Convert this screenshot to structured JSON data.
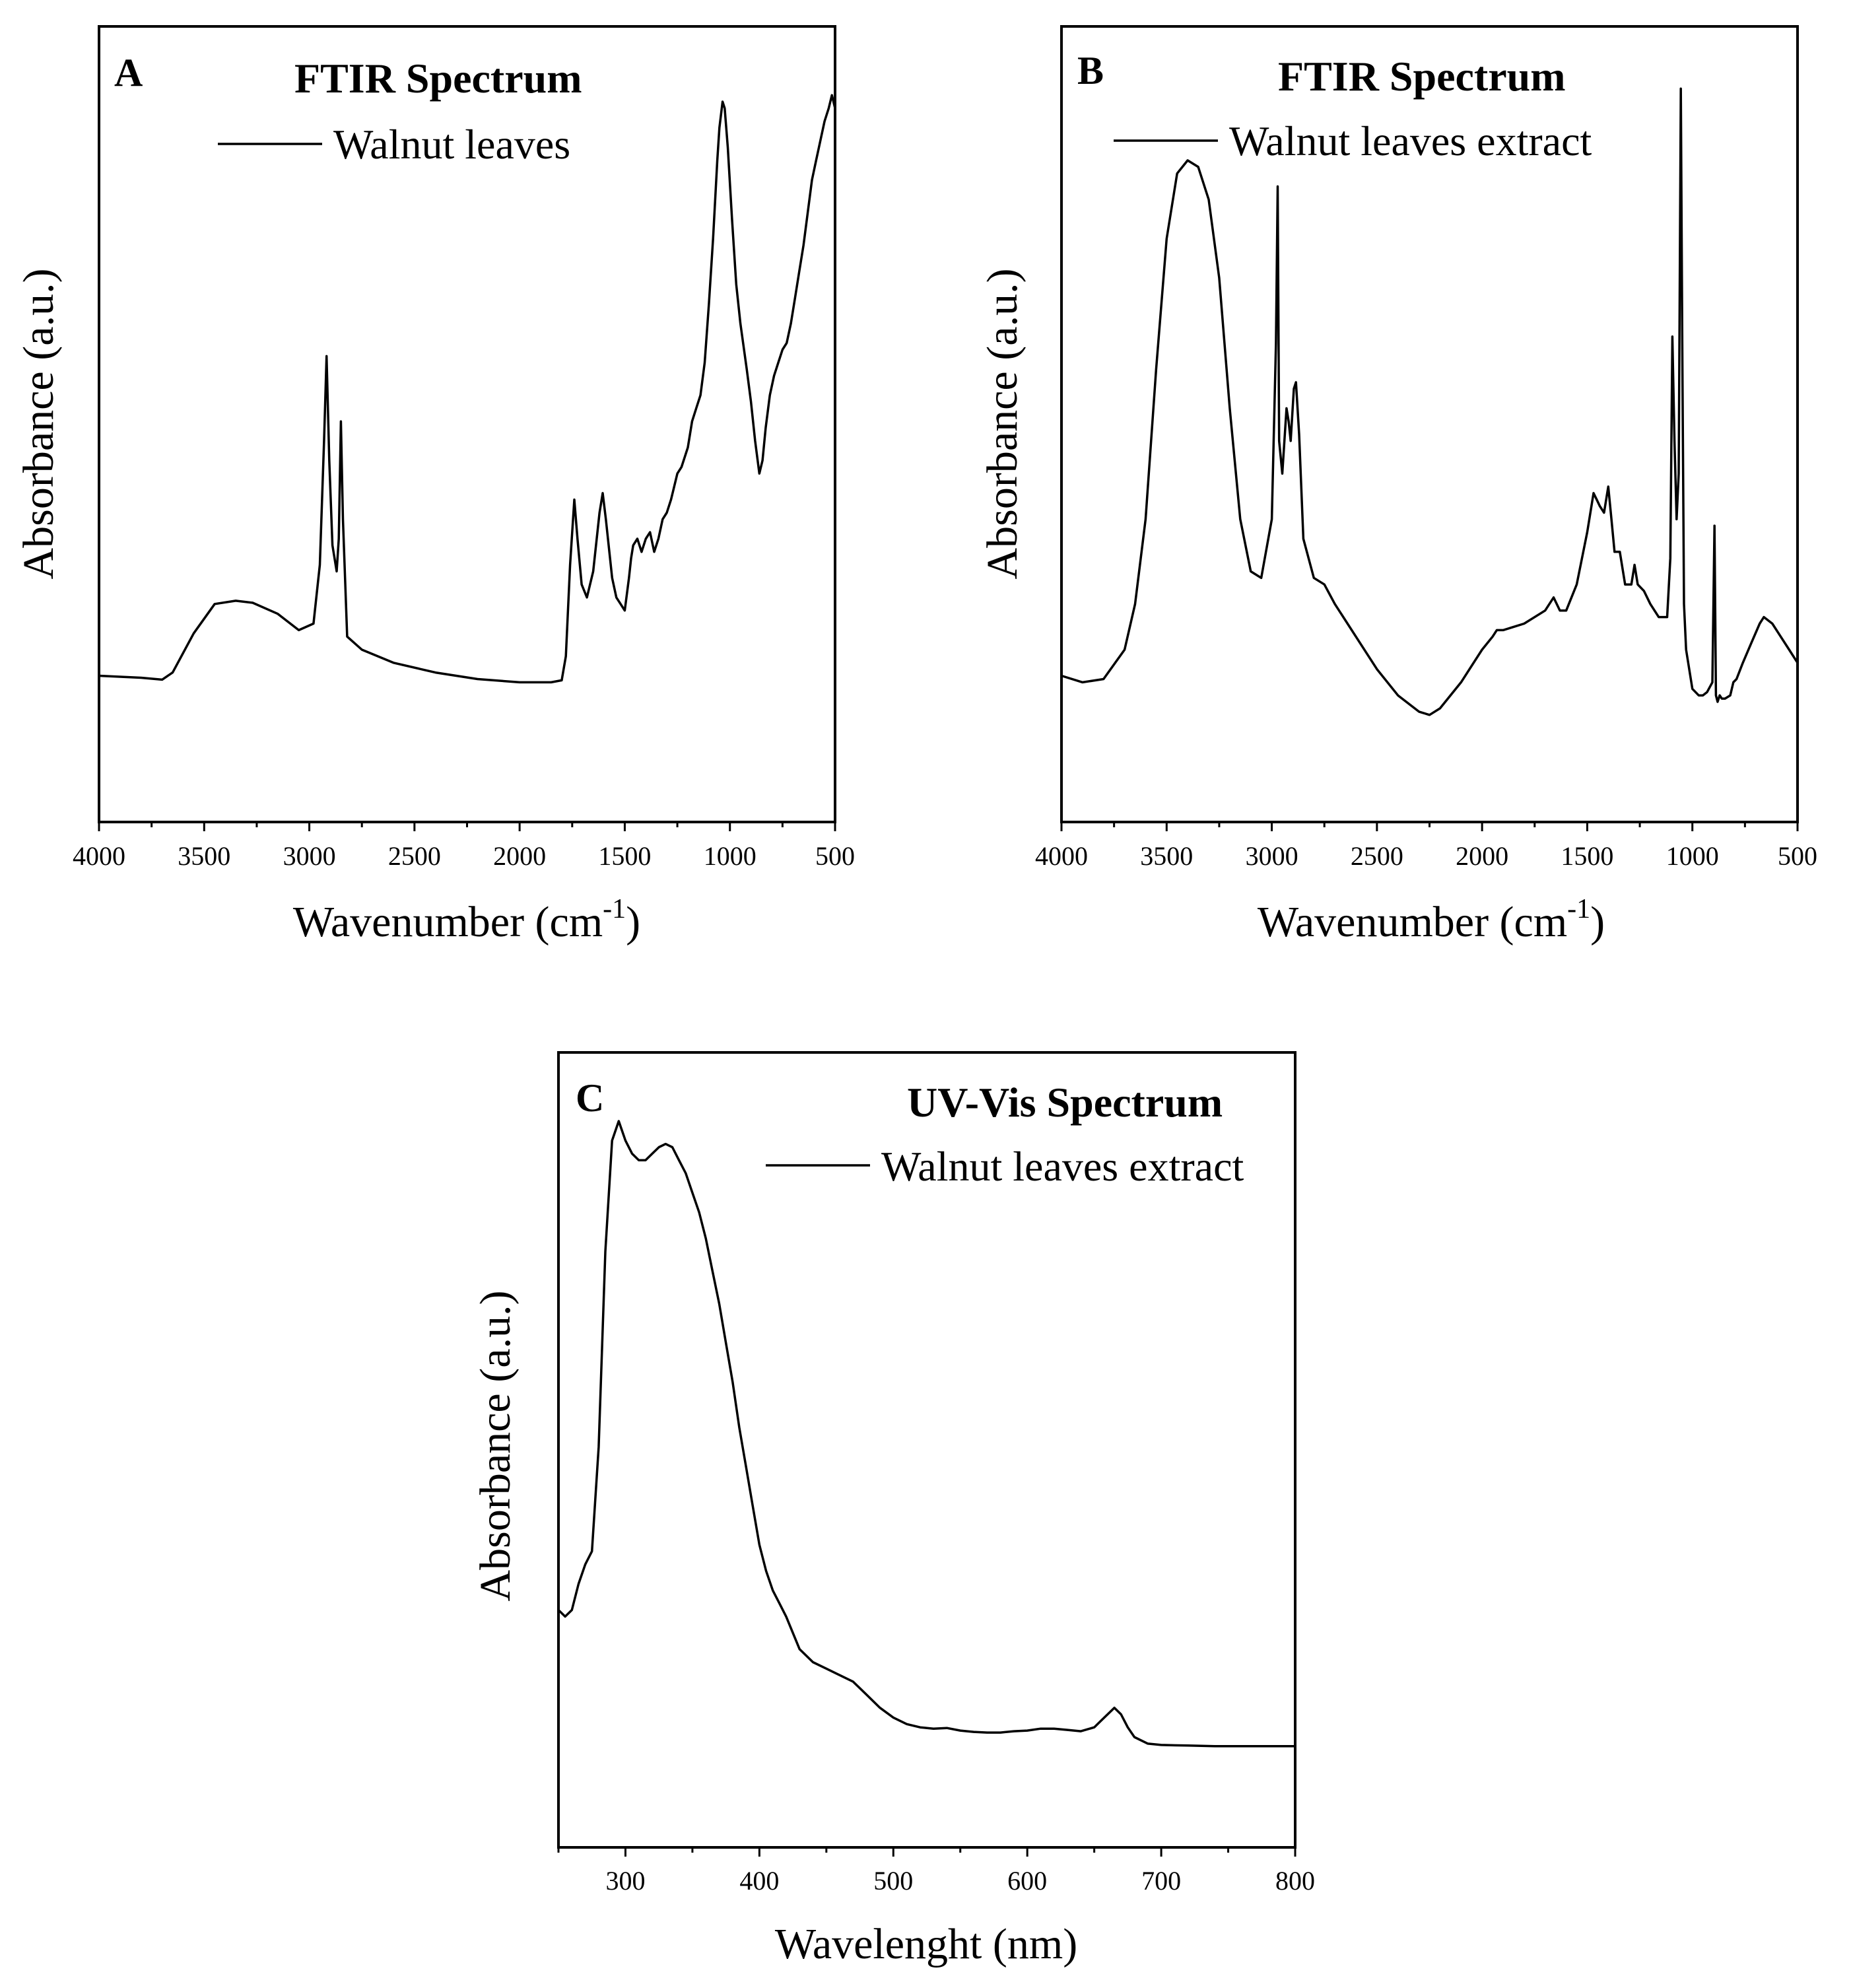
{
  "chart_data": [
    {
      "type": "line",
      "panel": "A",
      "title": "FTIR Spectrum",
      "legend": "Walnut leaves",
      "xlabel": "Wavenumber (cm",
      "xlabel_sup": "-1",
      "xlabel_end": ")",
      "ylabel": "Absorbance (a.u.)",
      "xlim": [
        4000,
        500
      ],
      "ylim": [
        0,
        100
      ],
      "xticks": [
        4000,
        3500,
        3000,
        2500,
        2000,
        1500,
        1000,
        500
      ],
      "series": [
        {
          "name": "Walnut leaves",
          "x": [
            4000,
            3800,
            3700,
            3650,
            3550,
            3450,
            3350,
            3270,
            3150,
            3050,
            2980,
            2950,
            2930,
            2918,
            2905,
            2890,
            2870,
            2860,
            2850,
            2840,
            2820,
            2750,
            2600,
            2400,
            2200,
            2000,
            1850,
            1800,
            1780,
            1760,
            1740,
            1725,
            1705,
            1680,
            1650,
            1620,
            1605,
            1590,
            1560,
            1540,
            1520,
            1500,
            1480,
            1470,
            1460,
            1440,
            1420,
            1400,
            1380,
            1360,
            1340,
            1320,
            1300,
            1280,
            1250,
            1230,
            1200,
            1180,
            1160,
            1140,
            1120,
            1100,
            1080,
            1060,
            1050,
            1035,
            1025,
            1010,
            990,
            970,
            950,
            920,
            900,
            880,
            860,
            845,
            830,
            810,
            790,
            770,
            750,
            730,
            710,
            690,
            670,
            650,
            630,
            610,
            590,
            570,
            550,
            530,
            515,
            500
          ],
          "y": [
            9,
            8.7,
            8.4,
            9.5,
            15.5,
            20,
            20.5,
            20.2,
            18.5,
            16,
            17,
            26,
            45,
            58,
            42,
            29,
            25,
            30,
            48,
            33,
            15,
            13,
            11,
            9.5,
            8.5,
            8,
            8,
            8.3,
            12,
            26,
            36,
            30,
            23,
            21,
            25,
            34,
            37,
            33,
            24,
            21,
            20,
            19,
            24,
            27,
            29,
            30,
            28,
            30,
            31,
            28,
            30,
            33,
            34,
            36,
            40,
            41,
            44,
            48,
            50,
            52,
            57,
            66,
            76,
            88,
            93,
            97,
            96,
            90,
            79,
            69,
            63,
            56,
            51,
            45,
            40,
            42,
            47,
            52,
            55,
            57,
            59,
            60,
            63,
            67,
            71,
            75,
            80,
            85,
            88,
            91,
            94,
            96,
            98,
            96
          ]
        }
      ]
    },
    {
      "type": "line",
      "panel": "B",
      "title": "FTIR Spectrum",
      "legend": "Walnut leaves extract",
      "xlabel": "Wavenumber (cm",
      "xlabel_sup": "-1",
      "xlabel_end": ")",
      "ylabel": "Absorbance (a.u.)",
      "xlim": [
        4000,
        500
      ],
      "ylim": [
        0,
        100
      ],
      "xticks": [
        4000,
        3500,
        3000,
        2500,
        2000,
        1500,
        1000,
        500
      ],
      "series": [
        {
          "name": "Walnut leaves extract",
          "x": [
            4000,
            3900,
            3800,
            3700,
            3650,
            3600,
            3550,
            3500,
            3450,
            3400,
            3350,
            3300,
            3250,
            3200,
            3150,
            3100,
            3050,
            3000,
            2980,
            2972,
            2965,
            2950,
            2930,
            2920,
            2910,
            2895,
            2885,
            2870,
            2850,
            2800,
            2750,
            2700,
            2600,
            2500,
            2400,
            2300,
            2250,
            2200,
            2100,
            2000,
            1950,
            1930,
            1900,
            1800,
            1700,
            1660,
            1630,
            1600,
            1550,
            1500,
            1470,
            1455,
            1440,
            1420,
            1400,
            1385,
            1370,
            1345,
            1320,
            1290,
            1275,
            1260,
            1230,
            1200,
            1160,
            1120,
            1105,
            1095,
            1085,
            1075,
            1065,
            1055,
            1048,
            1040,
            1030,
            1000,
            970,
            950,
            930,
            905,
            895,
            888,
            880,
            870,
            860,
            845,
            820,
            805,
            790,
            760,
            720,
            680,
            660,
            620,
            580,
            540,
            500
          ],
          "y": [
            9,
            8,
            8.5,
            13,
            20,
            33,
            56,
            76,
            86,
            88,
            87,
            82,
            70,
            50,
            33,
            25,
            24,
            33,
            60,
            84,
            45,
            40,
            50,
            48,
            45,
            53,
            54,
            46,
            30,
            24,
            23,
            20,
            15,
            10,
            6,
            3.5,
            3,
            4,
            8,
            13,
            15,
            16,
            16,
            17,
            19,
            21,
            19,
            19,
            23,
            31,
            37,
            36,
            35,
            34,
            38,
            33,
            28,
            28,
            23,
            23,
            26,
            23,
            22,
            20,
            18,
            18,
            27,
            61,
            45,
            33,
            40,
            99,
            60,
            20,
            13,
            7,
            6,
            6,
            6.5,
            8,
            32,
            6,
            5,
            6,
            5.5,
            5.5,
            6,
            8,
            8.5,
            11,
            14,
            17,
            18,
            17,
            15,
            13,
            11
          ]
        }
      ]
    },
    {
      "type": "line",
      "panel": "C",
      "title": "UV-Vis Spectrum",
      "legend": "Walnut leaves extract",
      "xlabel": "Wavelenght (nm)",
      "ylabel": "Absorbance (a.u.)",
      "xlim": [
        250,
        800
      ],
      "ylim": [
        0,
        100
      ],
      "xticks": [
        300,
        400,
        500,
        600,
        700,
        800
      ],
      "series": [
        {
          "name": "Walnut leaves extract",
          "x": [
            250,
            255,
            260,
            265,
            270,
            275,
            280,
            285,
            290,
            295,
            300,
            305,
            310,
            315,
            320,
            325,
            330,
            335,
            340,
            345,
            350,
            355,
            360,
            365,
            370,
            375,
            380,
            385,
            390,
            395,
            400,
            405,
            410,
            415,
            420,
            430,
            440,
            450,
            460,
            470,
            480,
            490,
            500,
            510,
            520,
            530,
            540,
            550,
            560,
            570,
            580,
            590,
            600,
            610,
            620,
            630,
            640,
            650,
            655,
            660,
            665,
            670,
            675,
            680,
            690,
            700,
            720,
            740,
            760,
            780,
            800
          ],
          "y": [
            23,
            22,
            23,
            27,
            30,
            32,
            48,
            78,
            95,
            98,
            95,
            93,
            92,
            92,
            93,
            94,
            94.5,
            94,
            92,
            90,
            87,
            84,
            80,
            75,
            70,
            64,
            58,
            51,
            45,
            39,
            33,
            29,
            26,
            24,
            22,
            17,
            15,
            14,
            13,
            12,
            10,
            8,
            6.5,
            5.5,
            5,
            4.8,
            4.9,
            4.5,
            4.3,
            4.2,
            4.2,
            4.4,
            4.5,
            4.8,
            4.8,
            4.6,
            4.4,
            5,
            6,
            7,
            8,
            7,
            5,
            3.5,
            2.5,
            2.3,
            2.2,
            2.1,
            2.1,
            2.1,
            2.1
          ]
        }
      ]
    }
  ]
}
